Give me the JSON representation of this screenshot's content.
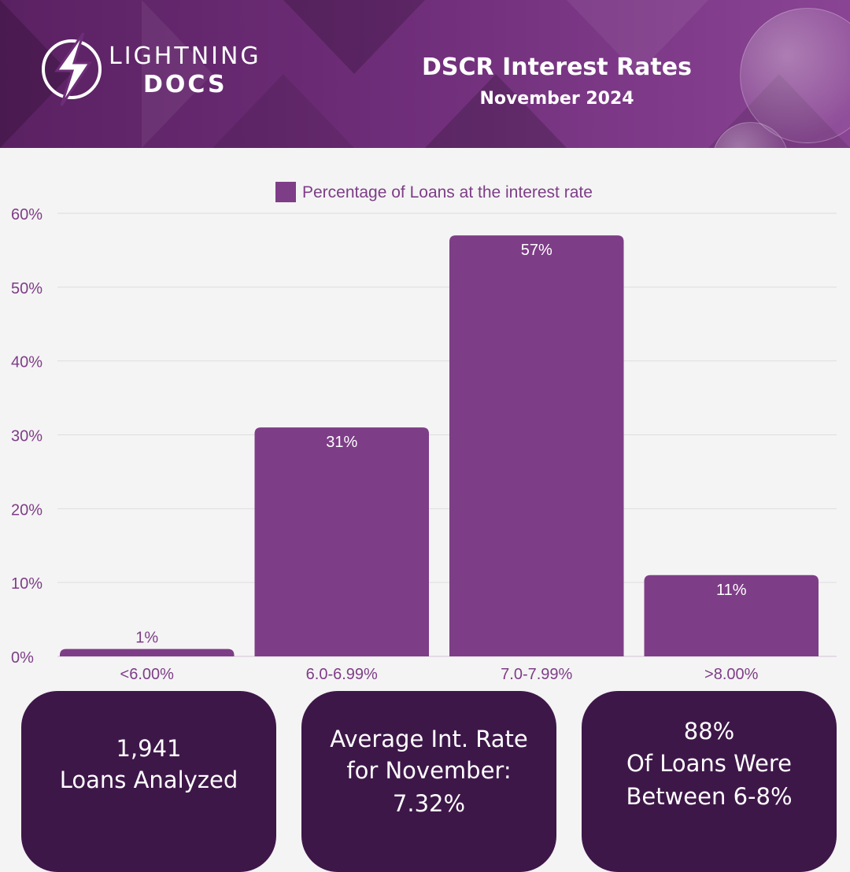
{
  "brand": {
    "line1": "LIGHTNING",
    "line2": "DOCS"
  },
  "header": {
    "title": "DSCR Interest Rates",
    "subtitle": "November 2024"
  },
  "colors": {
    "bar": "#7e3d87",
    "header": "#6e2d78",
    "card": "#3e1749",
    "axis_text": "#7e3d87",
    "background": "#f4f4f4"
  },
  "chart_data": {
    "type": "bar",
    "categories": [
      "<6.00%",
      "6.0-6.99%",
      "7.0-7.99%",
      ">8.00%"
    ],
    "series": [
      {
        "name": "Percentage of Loans at the interest rate",
        "values": [
          1,
          31,
          57,
          11
        ]
      }
    ],
    "data_labels": [
      "1%",
      "31%",
      "57%",
      "11%"
    ],
    "ylim": [
      0,
      60
    ],
    "yticks": [
      0,
      10,
      20,
      30,
      40,
      50,
      60
    ],
    "ytick_labels": [
      "0%",
      "10%",
      "20%",
      "30%",
      "40%",
      "50%",
      "60%"
    ],
    "grid": true,
    "legend": "top-center"
  },
  "stats": [
    {
      "lines": [
        "1,941",
        "Loans Analyzed"
      ]
    },
    {
      "lines": [
        "Average Int. Rate",
        "for November:",
        "7.32%"
      ]
    },
    {
      "lines": [
        "88%",
        "Of Loans Were",
        "Between 6-8%"
      ]
    }
  ]
}
